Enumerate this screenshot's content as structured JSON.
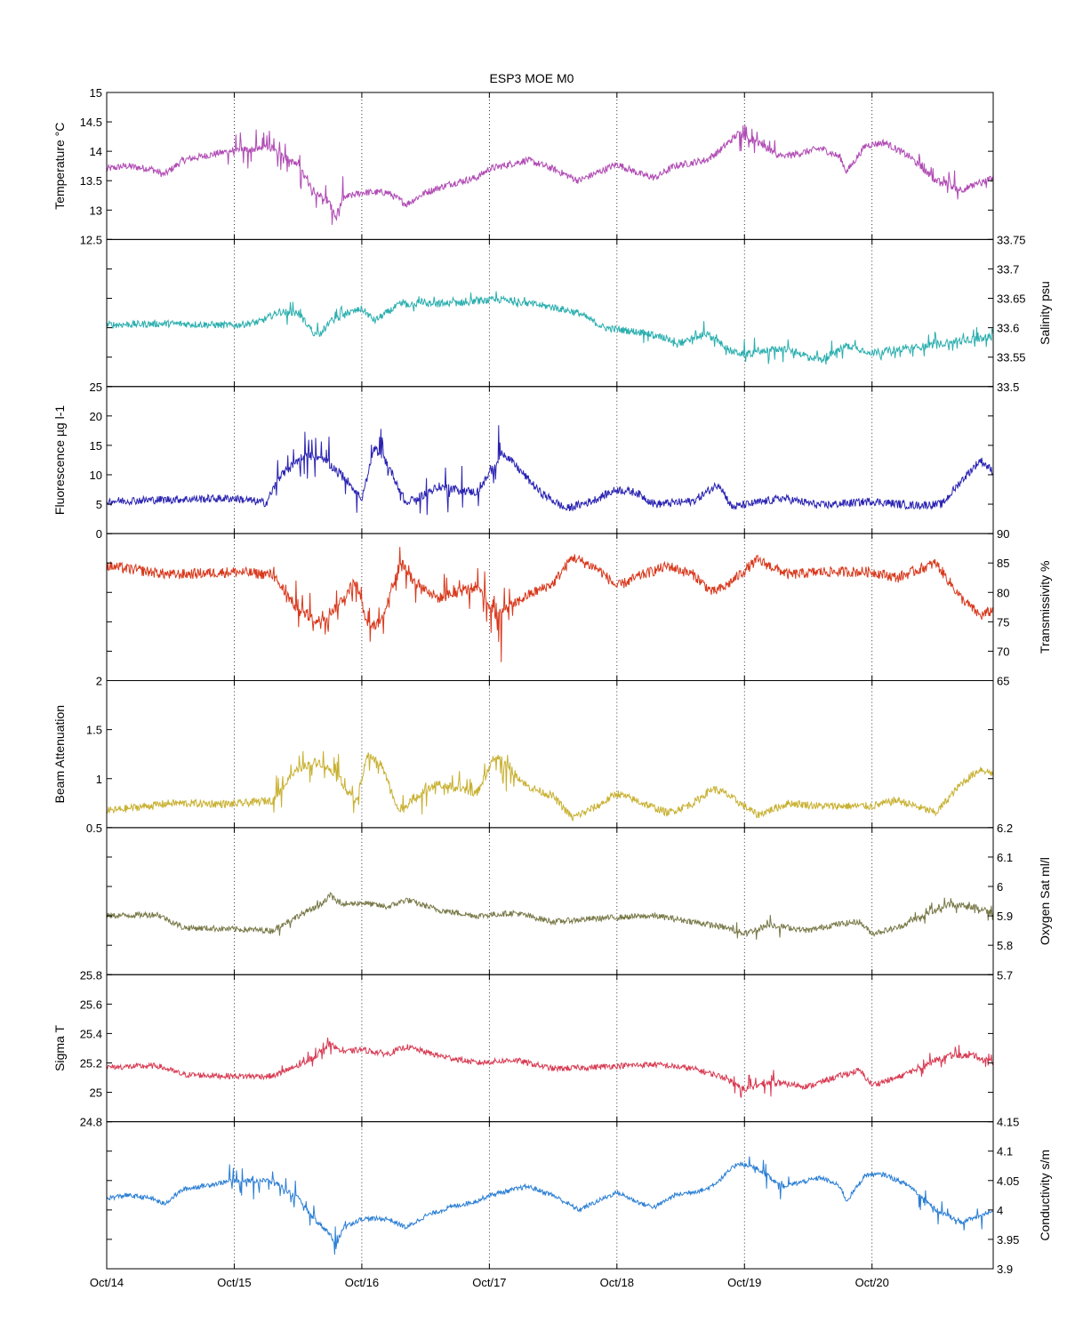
{
  "chart_data": {
    "type": "line",
    "title": "ESP3 MOE   M0",
    "x_ticks": [
      "Oct/14",
      "Oct/15",
      "Oct/16",
      "Oct/17",
      "Oct/18",
      "Oct/19",
      "Oct/20"
    ],
    "x_range": [
      14.0,
      20.95
    ],
    "grid": "vertical dotted at day boundaries",
    "panels": [
      {
        "id": "temperature",
        "ylabel": "Temperature °C",
        "axis_side": "left",
        "color": "#b04ab4",
        "ylim": [
          12.5,
          15
        ],
        "yticks": [
          12.5,
          13,
          13.5,
          14,
          14.5,
          15
        ],
        "noise": 0.06,
        "spikes": [
          [
            14.95,
            15.9,
            0.35
          ],
          [
            18.95,
            19.35,
            0.25
          ],
          [
            20.35,
            20.9,
            0.25
          ]
        ],
        "series": {
          "x": [
            14.0,
            14.15,
            14.35,
            14.45,
            14.6,
            15.0,
            15.3,
            15.5,
            15.6,
            15.75,
            15.8,
            15.85,
            16.0,
            16.2,
            16.35,
            16.5,
            16.7,
            16.9,
            17.0,
            17.3,
            17.5,
            17.7,
            18.0,
            18.2,
            18.3,
            18.45,
            18.7,
            18.8,
            18.95,
            19.1,
            19.3,
            19.6,
            19.75,
            19.8,
            19.95,
            20.1,
            20.3,
            20.5,
            20.7,
            20.85,
            20.95
          ],
          "y": [
            13.7,
            13.75,
            13.7,
            13.6,
            13.85,
            14.02,
            14.05,
            13.75,
            13.4,
            13.1,
            12.85,
            13.2,
            13.3,
            13.3,
            13.1,
            13.3,
            13.45,
            13.55,
            13.7,
            13.85,
            13.7,
            13.5,
            13.78,
            13.6,
            13.55,
            13.75,
            13.85,
            14.0,
            14.3,
            14.15,
            13.9,
            14.05,
            13.9,
            13.65,
            14.1,
            14.15,
            13.9,
            13.5,
            13.35,
            13.45,
            13.55
          ]
        }
      },
      {
        "id": "salinity",
        "ylabel": "Salinity psu",
        "axis_side": "right",
        "color": "#2aaeae",
        "ylim": [
          33.5,
          33.75
        ],
        "yticks": [
          33.5,
          33.55,
          33.6,
          33.65,
          33.7,
          33.75
        ],
        "noise": 0.006,
        "spikes": [
          [
            15.4,
            15.9,
            0.02
          ],
          [
            16.3,
            17.3,
            0.012
          ],
          [
            18.2,
            20.95,
            0.02
          ]
        ],
        "series": {
          "x": [
            14.0,
            14.5,
            15.0,
            15.2,
            15.35,
            15.5,
            15.65,
            15.75,
            15.85,
            16.0,
            16.1,
            16.3,
            16.6,
            16.9,
            17.1,
            17.5,
            17.7,
            17.9,
            18.2,
            18.5,
            18.7,
            18.9,
            19.0,
            19.3,
            19.6,
            19.8,
            20.0,
            20.3,
            20.6,
            20.95
          ],
          "y": [
            33.605,
            33.607,
            33.604,
            33.61,
            33.627,
            33.625,
            33.585,
            33.61,
            33.622,
            33.632,
            33.612,
            33.64,
            33.64,
            33.645,
            33.648,
            33.635,
            33.625,
            33.6,
            33.592,
            33.575,
            33.59,
            33.56,
            33.555,
            33.565,
            33.545,
            33.57,
            33.558,
            33.565,
            33.575,
            33.585
          ]
        }
      },
      {
        "id": "fluorescence",
        "ylabel": "Fluorescence µg l-1",
        "axis_side": "left",
        "color": "#2a23b2",
        "ylim": [
          0,
          25
        ],
        "yticks": [
          0,
          5,
          10,
          15,
          20,
          25
        ],
        "noise": 0.7,
        "spikes": [
          [
            15.3,
            16.0,
            4
          ],
          [
            16.05,
            17.1,
            4
          ],
          [
            17.0,
            17.1,
            6
          ]
        ],
        "series": {
          "x": [
            14.0,
            14.5,
            15.0,
            15.25,
            15.35,
            15.55,
            15.7,
            15.85,
            16.0,
            16.1,
            16.2,
            16.35,
            16.6,
            16.9,
            17.0,
            17.1,
            17.4,
            17.6,
            17.8,
            18.0,
            18.15,
            18.3,
            18.6,
            18.8,
            18.9,
            19.3,
            19.6,
            20.0,
            20.3,
            20.55,
            20.7,
            20.85,
            20.95
          ],
          "y": [
            5.5,
            5.8,
            6.0,
            5.2,
            9.5,
            13.5,
            12.5,
            10.0,
            6.0,
            14.5,
            12.0,
            5.0,
            8.0,
            7.0,
            10.0,
            14.0,
            7.0,
            4.2,
            5.5,
            7.5,
            7.0,
            5.0,
            5.5,
            8.5,
            4.5,
            6.0,
            4.8,
            5.5,
            4.8,
            5.0,
            9.0,
            12.5,
            10.5
          ]
        }
      },
      {
        "id": "transmissivity",
        "ylabel": "Transmissivity %",
        "axis_side": "right",
        "color": "#d8381c",
        "ylim": [
          65,
          90
        ],
        "yticks": [
          65,
          70,
          75,
          80,
          85,
          90
        ],
        "noise": 0.9,
        "spikes": [
          [
            15.3,
            16.0,
            4
          ],
          [
            16.05,
            17.2,
            4
          ],
          [
            16.9,
            17.2,
            6
          ]
        ],
        "series": {
          "x": [
            14.0,
            14.5,
            15.0,
            15.3,
            15.5,
            15.65,
            15.8,
            15.95,
            16.05,
            16.15,
            16.3,
            16.4,
            16.6,
            16.9,
            17.05,
            17.3,
            17.5,
            17.65,
            17.85,
            18.0,
            18.2,
            18.4,
            18.6,
            18.75,
            18.85,
            19.1,
            19.35,
            19.6,
            20.0,
            20.2,
            20.5,
            20.7,
            20.85,
            20.95
          ],
          "y": [
            84.5,
            83.0,
            83.5,
            83.0,
            77.0,
            75.0,
            77.5,
            82.0,
            74.0,
            75.0,
            85.5,
            82.0,
            79.0,
            81.0,
            76.0,
            79.5,
            81.5,
            86.0,
            84.0,
            81.0,
            83.0,
            84.5,
            83.0,
            80.0,
            81.0,
            85.5,
            83.0,
            83.5,
            83.5,
            82.5,
            85.0,
            79.0,
            76.0,
            77.0
          ]
        }
      },
      {
        "id": "beam_attenuation",
        "ylabel": "Beam Attenuation",
        "axis_side": "left",
        "color": "#c8b030",
        "ylim": [
          0.5,
          2
        ],
        "yticks": [
          0.5,
          1,
          1.5,
          2
        ],
        "noise": 0.04,
        "spikes": [
          [
            15.3,
            16.0,
            0.2
          ],
          [
            16.05,
            17.2,
            0.2
          ],
          [
            16.95,
            17.2,
            0.3
          ]
        ],
        "series": {
          "x": [
            14.0,
            14.5,
            15.0,
            15.3,
            15.5,
            15.65,
            15.8,
            15.95,
            16.05,
            16.15,
            16.3,
            16.4,
            16.6,
            16.9,
            17.05,
            17.3,
            17.5,
            17.65,
            17.85,
            18.0,
            18.2,
            18.4,
            18.6,
            18.75,
            18.85,
            19.1,
            19.35,
            19.6,
            20.0,
            20.2,
            20.5,
            20.7,
            20.85,
            20.95
          ],
          "y": [
            0.67,
            0.75,
            0.74,
            0.78,
            1.1,
            1.18,
            1.05,
            0.75,
            1.25,
            1.15,
            0.65,
            0.8,
            0.95,
            0.85,
            1.25,
            0.92,
            0.82,
            0.6,
            0.72,
            0.85,
            0.75,
            0.65,
            0.75,
            0.9,
            0.85,
            0.63,
            0.75,
            0.72,
            0.72,
            0.78,
            0.65,
            0.95,
            1.1,
            1.05
          ]
        }
      },
      {
        "id": "oxygen",
        "ylabel": "Oxygen Sat ml/l",
        "axis_side": "right",
        "color": "#787848",
        "ylim": [
          5.7,
          6.2
        ],
        "yticks": [
          5.7,
          5.8,
          5.9,
          6,
          6.1,
          6.2
        ],
        "noise": 0.01,
        "spikes": [
          [
            15.35,
            15.9,
            0.03
          ],
          [
            18.9,
            19.3,
            0.04
          ],
          [
            20.3,
            20.95,
            0.03
          ]
        ],
        "series": {
          "x": [
            14.0,
            14.4,
            14.6,
            15.0,
            15.3,
            15.5,
            15.65,
            15.75,
            15.8,
            15.9,
            16.0,
            16.2,
            16.35,
            16.6,
            16.9,
            17.2,
            17.5,
            17.8,
            18.0,
            18.3,
            18.6,
            18.85,
            19.0,
            19.2,
            19.5,
            19.7,
            19.9,
            20.0,
            20.2,
            20.4,
            20.6,
            20.8,
            20.95
          ],
          "y": [
            5.9,
            5.905,
            5.86,
            5.855,
            5.85,
            5.9,
            5.93,
            5.97,
            5.95,
            5.94,
            5.945,
            5.93,
            5.955,
            5.92,
            5.9,
            5.91,
            5.88,
            5.89,
            5.895,
            5.9,
            5.88,
            5.86,
            5.84,
            5.87,
            5.85,
            5.87,
            5.88,
            5.84,
            5.86,
            5.9,
            5.94,
            5.93,
            5.91
          ]
        }
      },
      {
        "id": "sigma_t",
        "ylabel": "Sigma T",
        "axis_side": "left",
        "color": "#d83a52",
        "ylim": [
          24.8,
          25.8
        ],
        "yticks": [
          24.8,
          25,
          25.2,
          25.4,
          25.6,
          25.8
        ],
        "noise": 0.02,
        "spikes": [
          [
            15.35,
            15.9,
            0.06
          ],
          [
            18.9,
            19.3,
            0.08
          ],
          [
            20.3,
            20.95,
            0.06
          ]
        ],
        "series": {
          "x": [
            14.0,
            14.4,
            14.6,
            15.0,
            15.3,
            15.5,
            15.65,
            15.75,
            15.8,
            15.9,
            16.0,
            16.2,
            16.35,
            16.6,
            16.9,
            17.2,
            17.5,
            17.8,
            18.0,
            18.3,
            18.6,
            18.85,
            19.0,
            19.2,
            19.5,
            19.7,
            19.9,
            20.0,
            20.2,
            20.4,
            20.6,
            20.8,
            20.95
          ],
          "y": [
            25.17,
            25.18,
            25.12,
            25.11,
            25.11,
            25.18,
            25.25,
            25.33,
            25.3,
            25.28,
            25.29,
            25.26,
            25.31,
            25.25,
            25.2,
            25.22,
            25.16,
            25.17,
            25.18,
            25.19,
            25.16,
            25.1,
            25.02,
            25.07,
            25.04,
            25.1,
            25.15,
            25.05,
            25.1,
            25.18,
            25.25,
            25.25,
            25.2
          ]
        }
      },
      {
        "id": "conductivity",
        "ylabel": "Conductivity s/m",
        "axis_side": "right",
        "color": "#2a7ed4",
        "ylim": [
          3.9,
          4.15
        ],
        "yticks": [
          3.9,
          3.95,
          4,
          4.05,
          4.1,
          4.15
        ],
        "noise": 0.004,
        "spikes": [
          [
            14.95,
            15.9,
            0.03
          ],
          [
            18.95,
            19.35,
            0.025
          ],
          [
            20.35,
            20.9,
            0.025
          ]
        ],
        "series": {
          "x": [
            14.0,
            14.15,
            14.35,
            14.45,
            14.6,
            15.0,
            15.3,
            15.5,
            15.6,
            15.75,
            15.8,
            15.85,
            16.0,
            16.2,
            16.35,
            16.5,
            16.7,
            16.9,
            17.0,
            17.3,
            17.5,
            17.7,
            18.0,
            18.2,
            18.3,
            18.45,
            18.7,
            18.8,
            18.95,
            19.1,
            19.3,
            19.6,
            19.75,
            19.8,
            19.95,
            20.1,
            20.3,
            20.5,
            20.7,
            20.85,
            20.95
          ],
          "y": [
            4.02,
            4.025,
            4.02,
            4.01,
            4.035,
            4.05,
            4.05,
            4.02,
            3.99,
            3.96,
            3.935,
            3.97,
            3.985,
            3.985,
            3.97,
            3.99,
            4.005,
            4.015,
            4.025,
            4.04,
            4.025,
            4.0,
            4.03,
            4.01,
            4.005,
            4.025,
            4.035,
            4.05,
            4.08,
            4.07,
            4.04,
            4.055,
            4.04,
            4.015,
            4.06,
            4.06,
            4.04,
            4.0,
            3.98,
            3.99,
            4.0
          ]
        }
      }
    ]
  }
}
